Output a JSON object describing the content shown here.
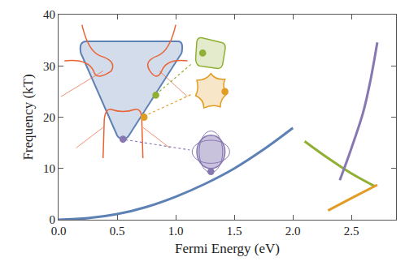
{
  "chart_data": {
    "type": "line",
    "x_label": "Fermi Energy (eV)",
    "y_label": "Frequency (kT)",
    "xlim": [
      0,
      2.88
    ],
    "ylim": [
      0,
      40
    ],
    "xticks": [
      {
        "value": 0,
        "label": "0.0"
      },
      {
        "value": 0.5,
        "label": "0.5"
      },
      {
        "value": 1,
        "label": "1.0"
      },
      {
        "value": 1.5,
        "label": "1.5"
      },
      {
        "value": 2,
        "label": "2.0"
      },
      {
        "value": 2.5,
        "label": "2.5"
      }
    ],
    "yticks": [
      0,
      10,
      20,
      30,
      40
    ],
    "grid": false,
    "series": [
      {
        "color": "#5e81b5",
        "x": [
          0,
          0.25,
          0.5,
          0.75,
          1.0,
          1.25,
          1.5,
          1.75,
          2.0
        ],
        "values": [
          0,
          0.3,
          1.1,
          2.5,
          4.5,
          7.0,
          10.0,
          13.7,
          17.9
        ]
      },
      {
        "color": "#8fb032",
        "x": [
          2.1,
          2.3,
          2.5,
          2.7
        ],
        "values": [
          15.3,
          12.0,
          9.0,
          6.5
        ]
      },
      {
        "color": "#e19c24",
        "x": [
          2.3,
          2.5,
          2.72
        ],
        "values": [
          1.8,
          4.2,
          6.8
        ]
      },
      {
        "color": "#8778b3",
        "x": [
          2.4,
          2.5,
          2.6,
          2.66,
          2.72
        ],
        "values": [
          7.7,
          14.0,
          21.0,
          27.0,
          34.6
        ]
      }
    ]
  }
}
